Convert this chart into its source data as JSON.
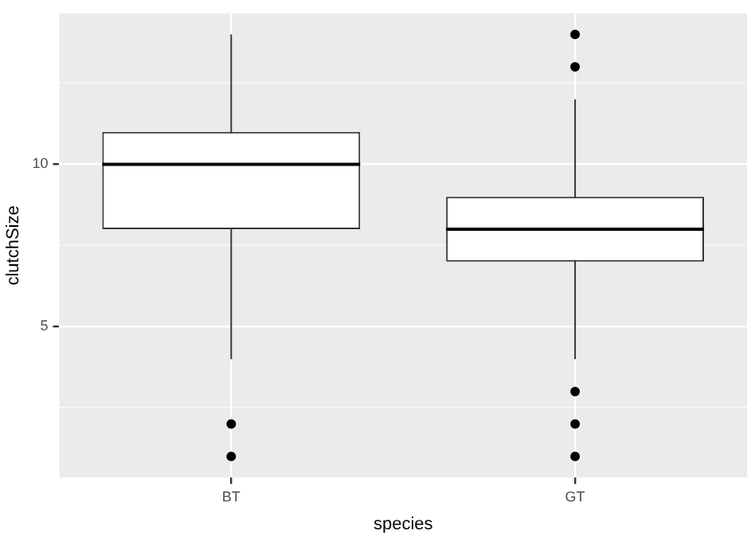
{
  "chart_data": {
    "type": "box",
    "xlabel": "species",
    "ylabel": "clutchSize",
    "categories": [
      "BT",
      "GT"
    ],
    "color": "#333333",
    "marker": "circle",
    "grid": true,
    "boxes": [
      {
        "low": 4,
        "q1": 8,
        "median": 10,
        "q3": 11,
        "high": 14,
        "outliers": [
          2,
          1
        ]
      },
      {
        "low": 4,
        "q1": 7,
        "median": 8,
        "q3": 9,
        "high": 12,
        "outliers": [
          14,
          13,
          3,
          2,
          1
        ]
      }
    ],
    "ylim": [
      0.35,
      14.65
    ],
    "yticks": [
      {
        "value": 2.5,
        "label": null
      },
      5,
      {
        "value": 7.5,
        "label": null
      },
      10,
      {
        "value": 12.5,
        "label": null
      }
    ]
  }
}
